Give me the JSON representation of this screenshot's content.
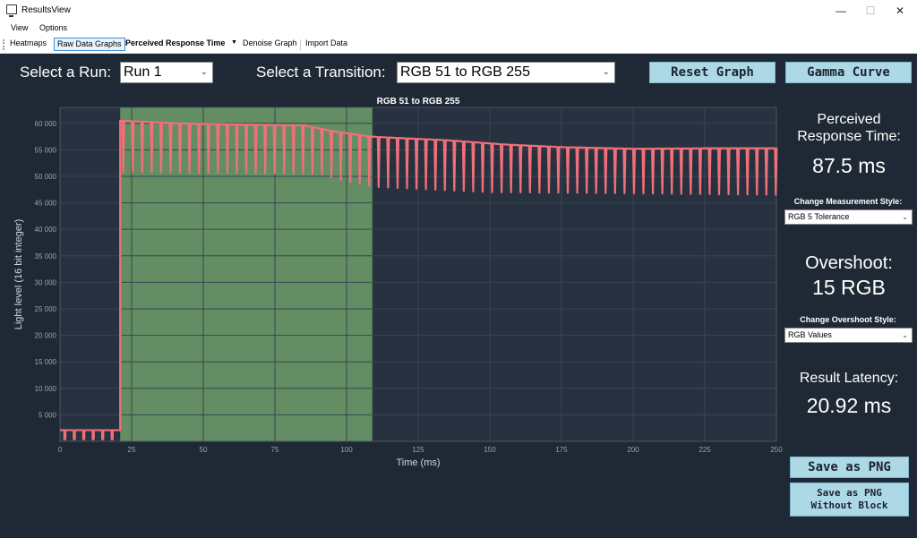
{
  "window": {
    "title": "ResultsView",
    "minimize": "—",
    "maximize": "☐",
    "close": "✕"
  },
  "menu": {
    "items": [
      "View",
      "Options"
    ]
  },
  "toolbar": {
    "heatmaps": "Heatmaps",
    "raw_data_graphs": "Raw Data Graphs",
    "perceived_response_time": "Perceived Response Time",
    "denoise_graph": "Denoise Graph",
    "import_data": "Import Data"
  },
  "controls": {
    "run_label": "Select a Run:",
    "run_value": "Run 1",
    "transition_label": "Select a Transition:",
    "transition_value": "RGB 51 to RGB 255",
    "reset_graph": "Reset Graph",
    "gamma_curve": "Gamma Curve"
  },
  "side": {
    "perceived_title_1": "Perceived",
    "perceived_title_2": "Response Time:",
    "perceived_value": "87.5 ms",
    "measurement_label": "Change Measurement Style:",
    "measurement_value": "RGB 5 Tolerance",
    "overshoot_title": "Overshoot:",
    "overshoot_value": "15 RGB",
    "overshoot_style_label": "Change Overshoot Style:",
    "overshoot_style_value": "RGB Values",
    "latency_title": "Result Latency:",
    "latency_value": "20.92 ms",
    "save_png": "Save as PNG",
    "save_png_noblock_1": "Save as PNG",
    "save_png_noblock_2": "Without Block"
  },
  "colors": {
    "background": "#1f2935",
    "line": "#f0707a",
    "highlight": "#6e9e6a",
    "button": "#add8e6"
  },
  "chart_data": {
    "type": "line",
    "title": "RGB 51 to RGB 255",
    "xlabel": "Time (ms)",
    "ylabel": "Light level (16 bit integer)",
    "xlim": [
      0,
      250
    ],
    "ylim": [
      0,
      63000
    ],
    "x_ticks": [
      "0",
      "25",
      "50",
      "75",
      "100",
      "125",
      "150",
      "175",
      "200",
      "225",
      "250"
    ],
    "y_ticks": [
      "5 000",
      "10 000",
      "15 000",
      "20 000",
      "25 000",
      "30 000",
      "35 000",
      "40 000",
      "45 000",
      "50 000",
      "55 000",
      "60 000"
    ],
    "highlight_region": [
      21,
      109
    ],
    "series": [
      {
        "baseline": [
          [
            0,
            2100
          ],
          [
            21,
            2100
          ]
        ],
        "transition_time_ms": 21,
        "envelope": [
          [
            21,
            60500
          ],
          [
            40,
            60000
          ],
          [
            60,
            59800
          ],
          [
            85,
            59600
          ],
          [
            95,
            58500
          ],
          [
            108,
            57500
          ],
          [
            115,
            57300
          ],
          [
            135,
            56800
          ],
          [
            155,
            56000
          ],
          [
            175,
            55500
          ],
          [
            200,
            55200
          ],
          [
            230,
            55300
          ],
          [
            250,
            55300
          ]
        ],
        "flicker_period_ms": 3.3,
        "flicker_dips": [
          [
            21,
            50800
          ],
          [
            90,
            50500
          ],
          [
            100,
            49000
          ],
          [
            110,
            48000
          ],
          [
            150,
            47000
          ],
          [
            200,
            46800
          ],
          [
            250,
            46500
          ]
        ]
      }
    ]
  }
}
